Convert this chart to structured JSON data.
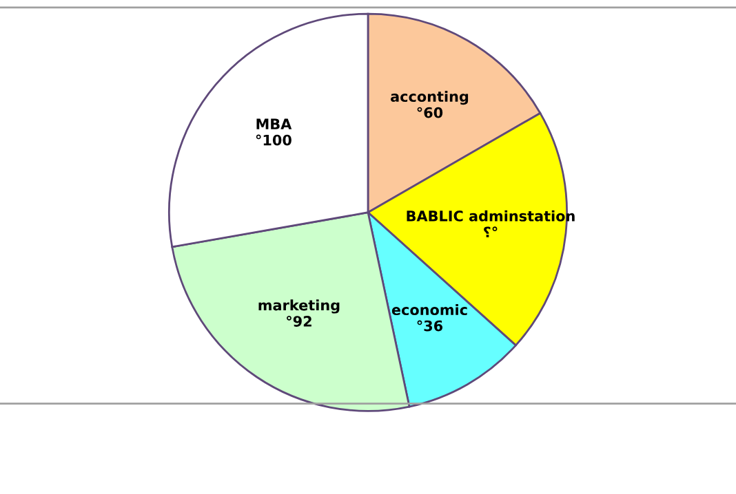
{
  "chart_data": {
    "type": "pie",
    "categories": [
      "acconting",
      "BABLIC adminstation",
      "economic",
      "marketing",
      "MBA"
    ],
    "values": [
      60,
      72,
      36,
      92,
      100
    ],
    "value_labels": [
      "°60",
      "؟°",
      "°36",
      "°92",
      "°100"
    ],
    "colors": [
      "#fcc89b",
      "#ffff00",
      "#66ffff",
      "#ccffcc",
      "#ffffff"
    ]
  }
}
